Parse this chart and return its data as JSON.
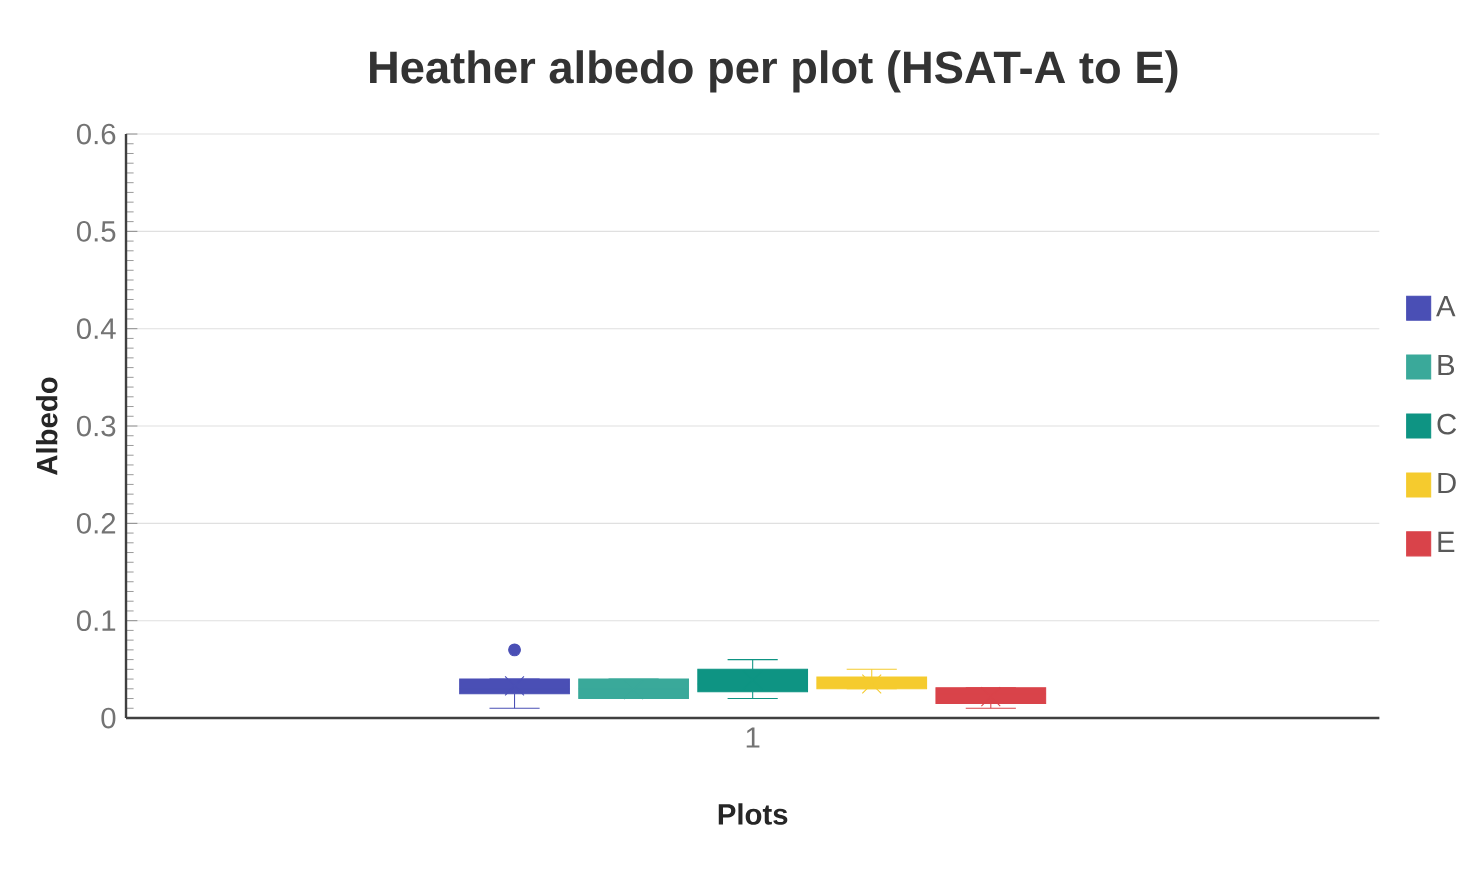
{
  "chart_data": {
    "type": "box",
    "title": "Heather albedo per plot (HSAT-A to E)",
    "xlabel": "Plots",
    "ylabel": "Albedo",
    "categories": [
      "1"
    ],
    "ylim": [
      0,
      0.6
    ],
    "yticks": [
      0,
      0.1,
      0.2,
      0.3,
      0.4,
      0.5,
      0.6
    ],
    "grid": "y",
    "legend": "right",
    "series": [
      {
        "name": "A",
        "color": "#4a4fb5",
        "boxes": [
          {
            "low": 0.01,
            "q1": 0.025,
            "median": 0.03,
            "q3": 0.04,
            "high": 0.04,
            "mean": 0.033,
            "outliers": [
              0.07
            ]
          }
        ]
      },
      {
        "name": "B",
        "color": "#3aa99a",
        "boxes": [
          {
            "low": 0.02,
            "q1": 0.02,
            "median": 0.03,
            "q3": 0.04,
            "high": 0.04,
            "mean": 0.029
          }
        ]
      },
      {
        "name": "C",
        "color": "#0e9483",
        "boxes": [
          {
            "low": 0.02,
            "q1": 0.027,
            "median": 0.035,
            "q3": 0.05,
            "high": 0.06,
            "mean": 0.039
          }
        ]
      },
      {
        "name": "D",
        "color": "#f5cb2e",
        "boxes": [
          {
            "low": 0.03,
            "q1": 0.03,
            "median": 0.035,
            "q3": 0.042,
            "high": 0.05,
            "mean": 0.035
          }
        ]
      },
      {
        "name": "E",
        "color": "#d9434a",
        "boxes": [
          {
            "low": 0.01,
            "q1": 0.015,
            "median": 0.025,
            "q3": 0.031,
            "high": 0.031,
            "mean": 0.022
          }
        ]
      }
    ]
  }
}
